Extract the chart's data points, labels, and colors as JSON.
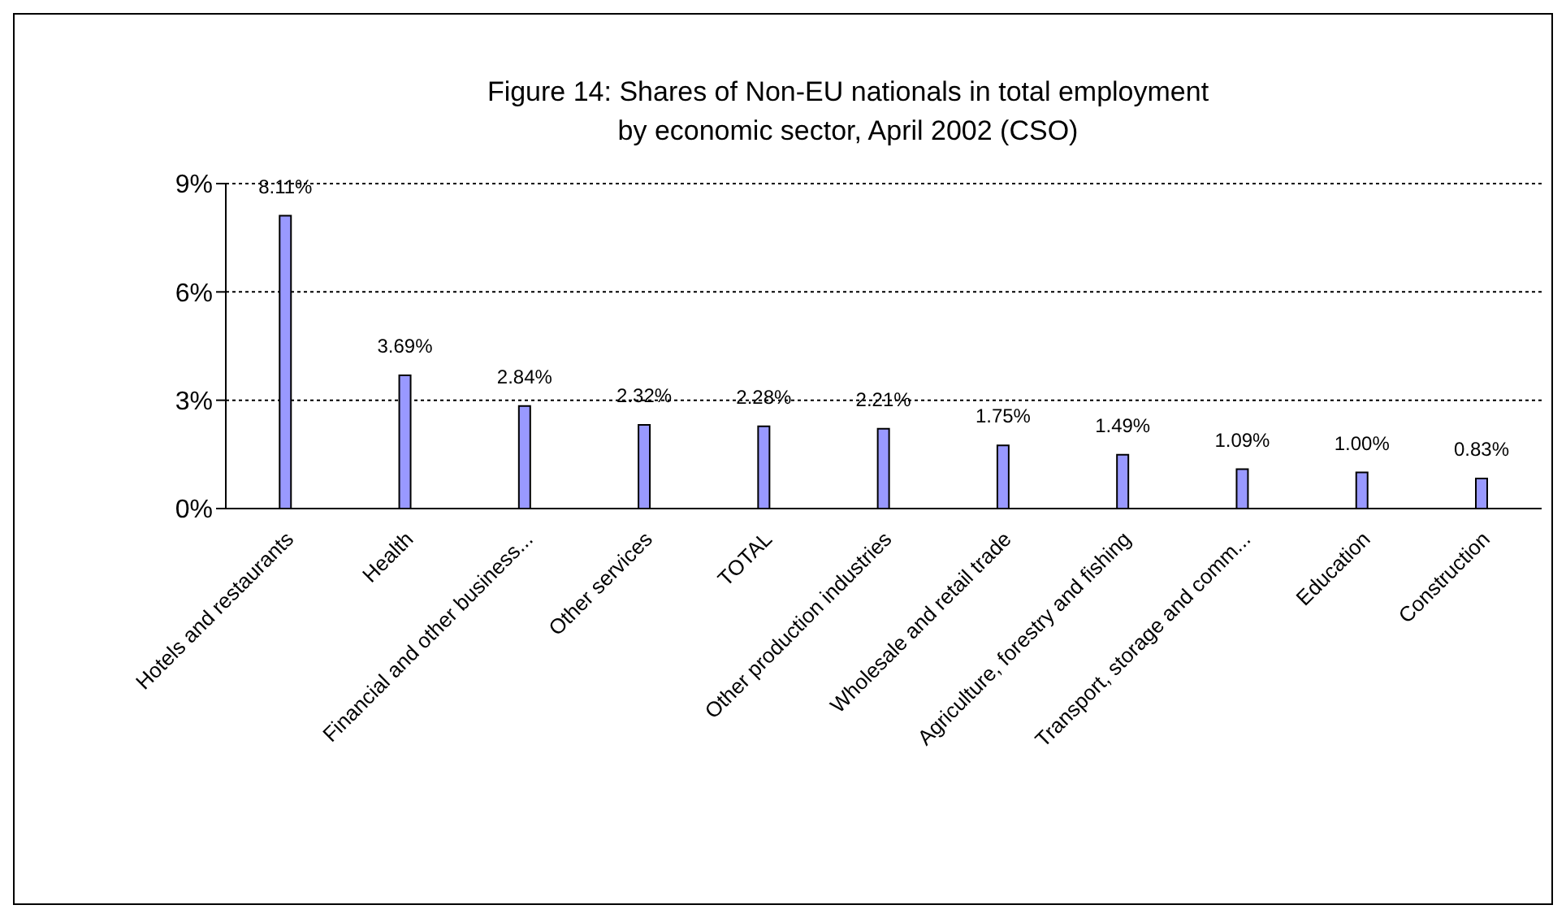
{
  "chart_data": {
    "type": "bar",
    "title": "Figure 14: Shares of Non-EU nationals in total employment",
    "subtitle": "by economic sector, April 2002 (CSO)",
    "categories": [
      "Hotels and restaurants",
      "Health",
      "Financial and other business...",
      "Other services",
      "TOTAL",
      "Other production industries",
      "Wholesale and retail trade",
      "Agriculture, forestry and fishing",
      "Transport, storage and comm...",
      "Education",
      "Construction"
    ],
    "values": [
      8.11,
      3.69,
      2.84,
      2.32,
      2.28,
      2.21,
      1.75,
      1.49,
      1.09,
      1.0,
      0.83
    ],
    "value_labels": [
      "8.11%",
      "3.69%",
      "2.84%",
      "2.32%",
      "2.28%",
      "2.21%",
      "1.75%",
      "1.49%",
      "1.09%",
      "1.00%",
      "0.83%"
    ],
    "color": "#9999ff",
    "ylim": [
      0,
      9
    ],
    "yticks": [
      {
        "value": 0,
        "label": "0%"
      },
      {
        "value": 3,
        "label": "3%"
      },
      {
        "value": 6,
        "label": "6%"
      },
      {
        "value": 9,
        "label": "9%"
      }
    ],
    "grid": "y"
  }
}
